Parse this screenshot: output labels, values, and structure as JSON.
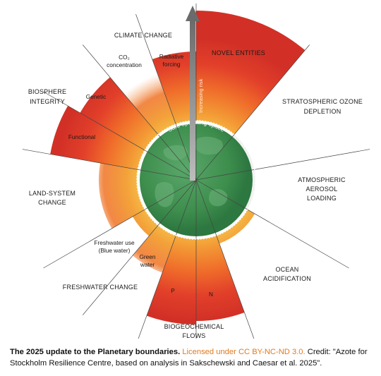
{
  "diagram": {
    "labels": {
      "climate_change": "CLIMATE CHANGE",
      "co2": "CO₂",
      "co2_line2": "concentration",
      "radiative": "Radiative",
      "radiative_line2": "forcing",
      "novel_entities": "NOVEL ENTITIES",
      "biosphere": "BIOSPHERE",
      "biosphere_line2": "INTEGRITY",
      "genetic": "Genetic",
      "functional": "Functional",
      "stratospheric": "STRATOSPHERIC OZONE",
      "stratospheric_line2": "DEPLETION",
      "atmospheric": "ATMOSPHERIC",
      "atmospheric_line2": "AEROSOL",
      "atmospheric_line3": "LOADING",
      "land_system": "LAND-SYSTEM",
      "land_system_line2": "CHANGE",
      "freshwater_use": "Freshwater use",
      "freshwater_use_line2": "(Blue water)",
      "green_water": "Green",
      "green_water_line2": "water",
      "freshwater_change": "FRESHWATER CHANGE",
      "ocean": "OCEAN",
      "ocean_line2": "ACIDIFICATION",
      "p": "P",
      "n": "N",
      "biogeochemical": "BIOGEOCHEMICAL",
      "biogeochemical_line2": "FLOWS",
      "safe_space": "Safe operating space",
      "increasing_risk": "Increasing risk"
    },
    "colors": {
      "safe_green": "#3a8a4a",
      "high_risk_red": "#d7322a",
      "transition_orange": "#f08a2b",
      "boundary_yellow": "#f6bd45",
      "not_quantified_grey": "#c9c9c9"
    }
  },
  "caption": {
    "title": "The 2025 update to the Planetary boundaries.",
    "license": "Licensed under CC BY-NC-ND 3.0.",
    "credit": "Credit: \"Azote for Stockholm Resilience Centre, based on analysis in Sakschewski and Caesar et al. 2025\"."
  }
}
